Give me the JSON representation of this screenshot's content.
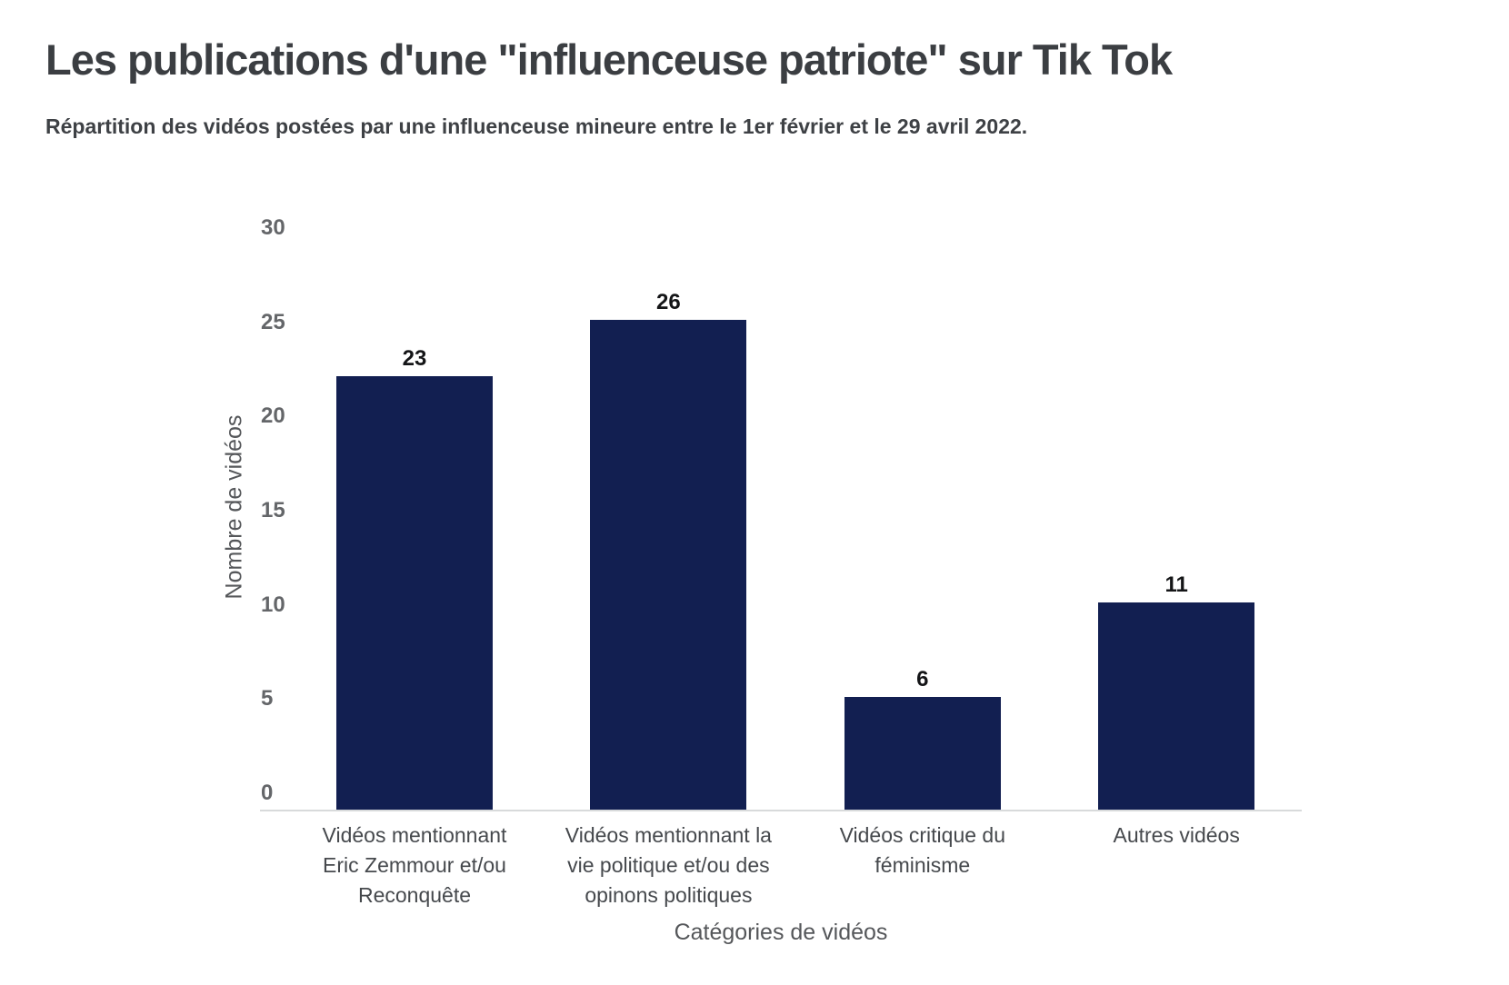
{
  "header": {
    "title": "Les publications d'une \"influenceuse patriote\" sur Tik Tok",
    "subtitle": "Répartition des vidéos postées par une influenceuse mineure entre le 1er février et le 29 avril 2022."
  },
  "chart_data": {
    "type": "bar",
    "title": "Les publications d'une \"influenceuse patriote\" sur Tik Tok",
    "subtitle": "Répartition des vidéos postées par une influenceuse mineure entre le 1er février et le 29 avril 2022.",
    "xlabel": "Catégories de vidéos",
    "ylabel": "Nombre de vidéos",
    "categories": [
      "Vidéos mentionnant\nEric Zemmour et/ou\nReconquête",
      "Vidéos mentionnant la\nvie politique et/ou des\nopinons politiques",
      "Vidéos critique du\nféminisme",
      "Autres vidéos"
    ],
    "values": [
      23,
      26,
      6,
      11
    ],
    "value_labels": [
      "23",
      "26",
      "6",
      "11"
    ],
    "yticks": [
      0,
      5,
      10,
      15,
      20,
      25,
      30
    ],
    "ylim": [
      0,
      30
    ],
    "grid": false,
    "legend": "none",
    "colors": {
      "bar": "#121f51",
      "title": "#3b3e42",
      "subtitle": "#3e4145",
      "axis_titles": "#55575a",
      "ytick_labels": "#646669",
      "category_labels": "#46494d",
      "value_labels": "#141517",
      "axis_line": "#d8dadb",
      "background": "#ffffff"
    }
  }
}
